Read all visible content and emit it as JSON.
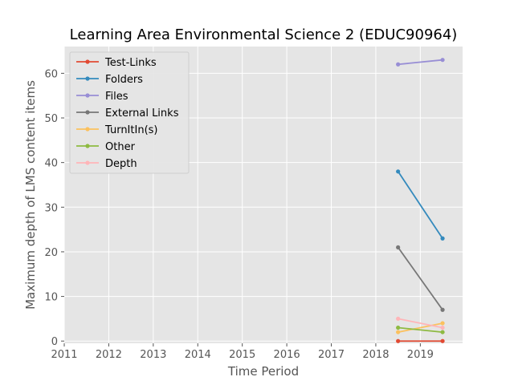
{
  "chart_data": {
    "type": "line",
    "title": "Learning Area Environmental Science 2 (EDUC90964)",
    "xlabel": "Time Period",
    "ylabel": "Maximum depth of LMS content items",
    "xlim": [
      2011,
      2019.95
    ],
    "ylim": [
      -0.5,
      66
    ],
    "xticks": [
      "2011",
      "2012",
      "2013",
      "2014",
      "2015",
      "2016",
      "2017",
      "2018",
      "2019"
    ],
    "yticks": [
      "0",
      "10",
      "20",
      "30",
      "40",
      "50",
      "60"
    ],
    "grid": true,
    "legend_position": "top-left",
    "x": [
      2018.5,
      2019.5
    ],
    "series": [
      {
        "name": "Test-Links",
        "color": "#E24A33",
        "values": [
          0,
          0
        ]
      },
      {
        "name": "Folders",
        "color": "#348ABD",
        "values": [
          38,
          23
        ]
      },
      {
        "name": "Files",
        "color": "#988ED5",
        "values": [
          62,
          63
        ]
      },
      {
        "name": "External Links",
        "color": "#777777",
        "values": [
          21,
          7
        ]
      },
      {
        "name": "TurnItIn(s)",
        "color": "#FBC15E",
        "values": [
          2,
          4
        ]
      },
      {
        "name": "Other",
        "color": "#8EBA42",
        "values": [
          3,
          2
        ]
      },
      {
        "name": "Depth",
        "color": "#FFB5B8",
        "values": [
          5,
          3
        ]
      }
    ]
  }
}
